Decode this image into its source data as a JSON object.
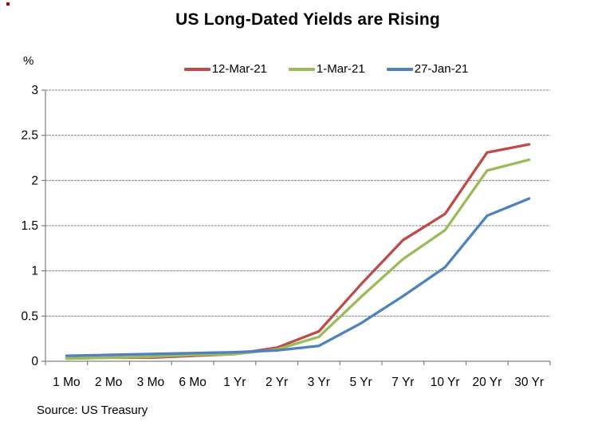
{
  "title": "US Long-Dated Yields are Rising",
  "unit_label": "%",
  "source": "Source: US Treasury",
  "chart_data": {
    "type": "line",
    "title": "US Long-Dated Yields are Rising",
    "ylabel": "%",
    "xlabel": "",
    "ylim": [
      0,
      3
    ],
    "grid": true,
    "legend_position": "top",
    "categories": [
      "1 Mo",
      "2 Mo",
      "3 Mo",
      "6 Mo",
      "1 Yr",
      "2 Yr",
      "3 Yr",
      "5 Yr",
      "7 Yr",
      "10 Yr",
      "20 Yr",
      "30 Yr"
    ],
    "y_ticks": [
      0,
      0.5,
      1,
      1.5,
      2,
      2.5,
      3
    ],
    "y_tick_labels": [
      "0",
      "0.5",
      "1",
      "1.5",
      "2",
      "2.5",
      "3"
    ],
    "series": [
      {
        "name": "12-Mar-21",
        "color": "#BE4B48",
        "values": [
          0.03,
          0.04,
          0.04,
          0.06,
          0.08,
          0.15,
          0.33,
          0.85,
          1.34,
          1.63,
          2.31,
          2.4
        ]
      },
      {
        "name": "1-Mar-21",
        "color": "#9BBB59",
        "values": [
          0.03,
          0.04,
          0.05,
          0.07,
          0.08,
          0.13,
          0.27,
          0.71,
          1.13,
          1.45,
          2.11,
          2.23
        ]
      },
      {
        "name": "27-Jan-21",
        "color": "#4F81BD",
        "values": [
          0.06,
          0.07,
          0.08,
          0.09,
          0.1,
          0.12,
          0.17,
          0.42,
          0.72,
          1.04,
          1.61,
          1.8
        ]
      }
    ],
    "grid_color": "#848484",
    "axis_color": "#808080"
  }
}
